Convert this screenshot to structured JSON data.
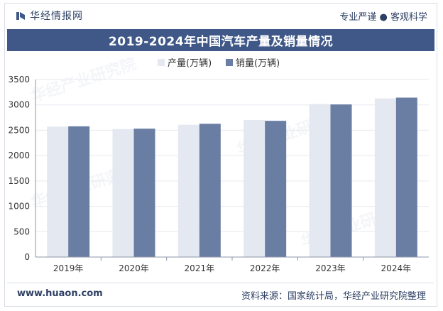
{
  "header": {
    "brand": "华经情报网",
    "slogan": "专业严谨 ● 客观科学"
  },
  "footer": {
    "website": "www.huaon.com",
    "source": "资料来源：国家统计局，华经产业研究院整理"
  },
  "colors": {
    "production": "#e4e8f1",
    "sales": "#6a7ea4",
    "title_bg": "#3f5887"
  },
  "chart_data": {
    "type": "bar",
    "title": "2019-2024年中国汽车产量及销量情况",
    "categories": [
      "2019年",
      "2020年",
      "2021年",
      "2022年",
      "2023年",
      "2024年"
    ],
    "series": [
      {
        "name": "产量(万辆)",
        "values": [
          2572,
          2523,
          2608,
          2702,
          3016,
          3128
        ]
      },
      {
        "name": "销量(万辆)",
        "values": [
          2577,
          2531,
          2627,
          2686,
          3009,
          3143
        ]
      }
    ],
    "yticks": [
      "0",
      "500",
      "1000",
      "1500",
      "2000",
      "2500",
      "3000",
      "3500"
    ],
    "ylim": [
      0,
      3500
    ],
    "legend_position": "top-center",
    "xlabel": "",
    "ylabel": ""
  }
}
